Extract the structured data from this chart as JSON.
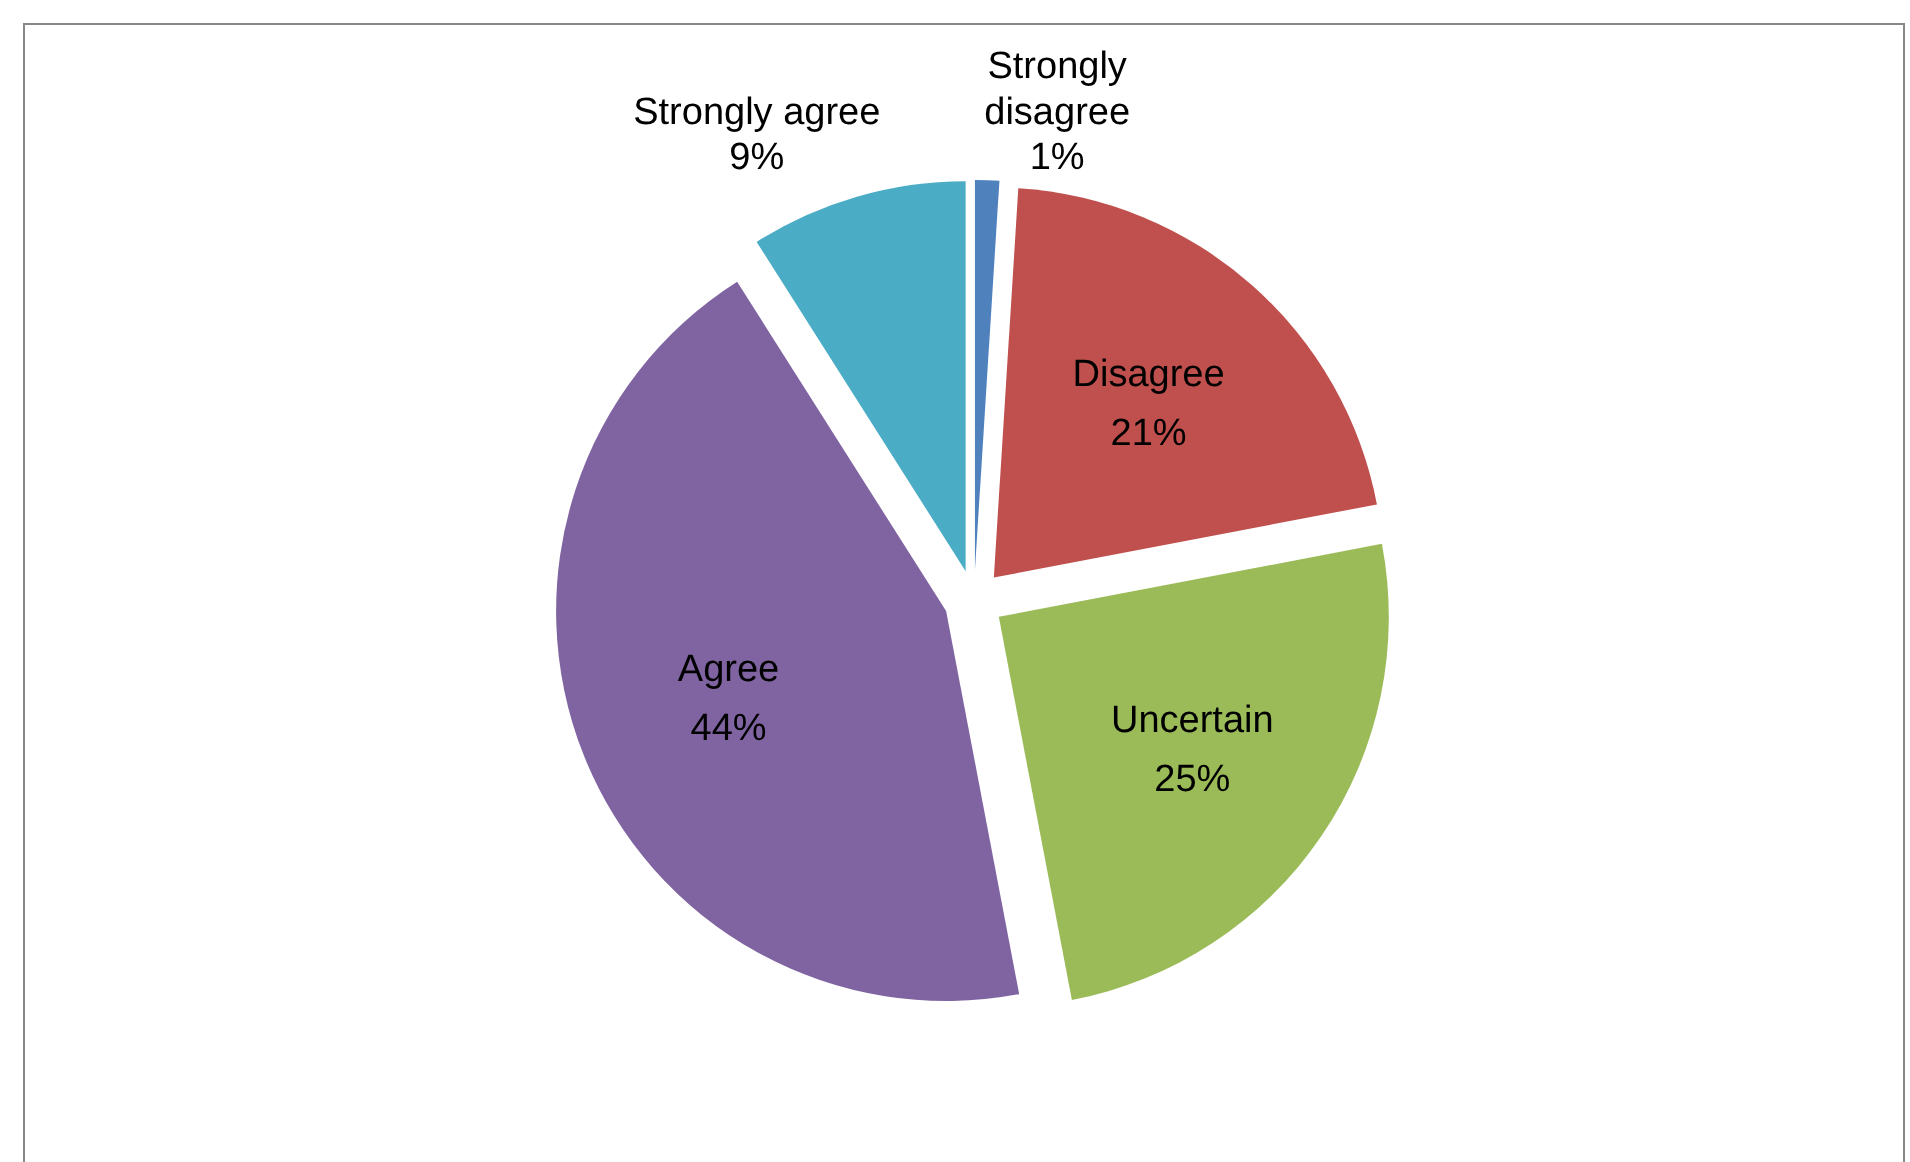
{
  "chart_data": {
    "type": "pie",
    "categories": [
      "Strongly disagree",
      "Disagree",
      "Uncertain",
      "Agree",
      "Strongly agree"
    ],
    "values": [
      1,
      21,
      25,
      44,
      9
    ],
    "colors": [
      "#4f81bd",
      "#c0504d",
      "#9bbb59",
      "#8064a2",
      "#4bacc6"
    ],
    "value_labels": [
      "1%",
      "21%",
      "25%",
      "44%",
      "9%"
    ]
  }
}
